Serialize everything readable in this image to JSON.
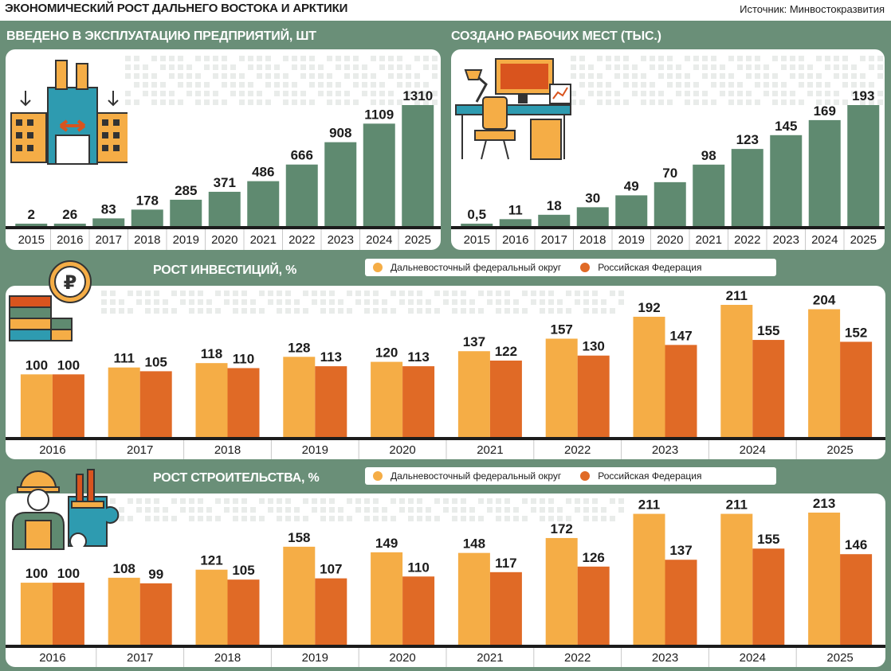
{
  "header": {
    "title": "ЭКОНОМИЧЕСКИЙ РОСТ ДАЛЬНЕГО ВОСТОКА И АРКТИКИ",
    "source": "Источник: Минвостокразвития"
  },
  "colors": {
    "background": "#6a8f78",
    "bars_green": "#5f8a70",
    "dfo": "#f5ad46",
    "rf": "#e06a26"
  },
  "legend": {
    "dfo": "Дальневосточный федеральный округ",
    "rf": "Российская Федерация"
  },
  "icons": [
    "factory-icon",
    "desk-workplace-icon",
    "ruble-coin-stack-icon",
    "builder-puzzle-icon"
  ],
  "chart_data": [
    {
      "type": "bar",
      "title": "ВВЕДЕНО В ЭКСПЛУАТАЦИЮ ПРЕДПРИЯТИЙ, ШТ",
      "categories": [
        "2015",
        "2016",
        "2017",
        "2018",
        "2019",
        "2020",
        "2021",
        "2022",
        "2023",
        "2024",
        "2025"
      ],
      "values": [
        2,
        26,
        83,
        178,
        285,
        371,
        486,
        666,
        908,
        1109,
        1310
      ],
      "labels": [
        "2",
        "26",
        "83",
        "178",
        "285",
        "371",
        "486",
        "666",
        "908",
        "1109",
        "1310"
      ],
      "ylim": [
        0,
        1310
      ]
    },
    {
      "type": "bar",
      "title": "СОЗДАНО РАБОЧИХ МЕСТ (ТЫС.)",
      "categories": [
        "2015",
        "2016",
        "2017",
        "2018",
        "2019",
        "2020",
        "2021",
        "2022",
        "2023",
        "2024",
        "2025"
      ],
      "values": [
        0.5,
        11,
        18,
        30,
        49,
        70,
        98,
        123,
        145,
        169,
        193
      ],
      "labels": [
        "0,5",
        "11",
        "18",
        "30",
        "49",
        "70",
        "98",
        "123",
        "145",
        "169",
        "193"
      ],
      "ylim": [
        0,
        193
      ]
    },
    {
      "type": "bar",
      "title": "РОСТ ИНВЕСТИЦИЙ, %",
      "categories": [
        "2016",
        "2017",
        "2018",
        "2019",
        "2020",
        "2021",
        "2022",
        "2023",
        "2024",
        "2025"
      ],
      "series": [
        {
          "name": "Дальневосточный федеральный округ",
          "values": [
            100,
            111,
            118,
            128,
            120,
            137,
            157,
            192,
            211,
            204
          ]
        },
        {
          "name": "Российская Федерация",
          "values": [
            100,
            105,
            110,
            113,
            113,
            122,
            130,
            147,
            155,
            152
          ]
        }
      ],
      "ylim": [
        0,
        211
      ]
    },
    {
      "type": "bar",
      "title": "РОСТ СТРОИТЕЛЬСТВА, %",
      "categories": [
        "2016",
        "2017",
        "2018",
        "2019",
        "2020",
        "2021",
        "2022",
        "2023",
        "2024",
        "2025"
      ],
      "series": [
        {
          "name": "Дальневосточный федеральный округ",
          "values": [
            100,
            108,
            121,
            158,
            149,
            148,
            172,
            211,
            211,
            213
          ]
        },
        {
          "name": "Российская Федерация",
          "values": [
            100,
            99,
            105,
            107,
            110,
            117,
            126,
            137,
            155,
            146
          ]
        }
      ],
      "ylim": [
        0,
        213
      ]
    }
  ]
}
